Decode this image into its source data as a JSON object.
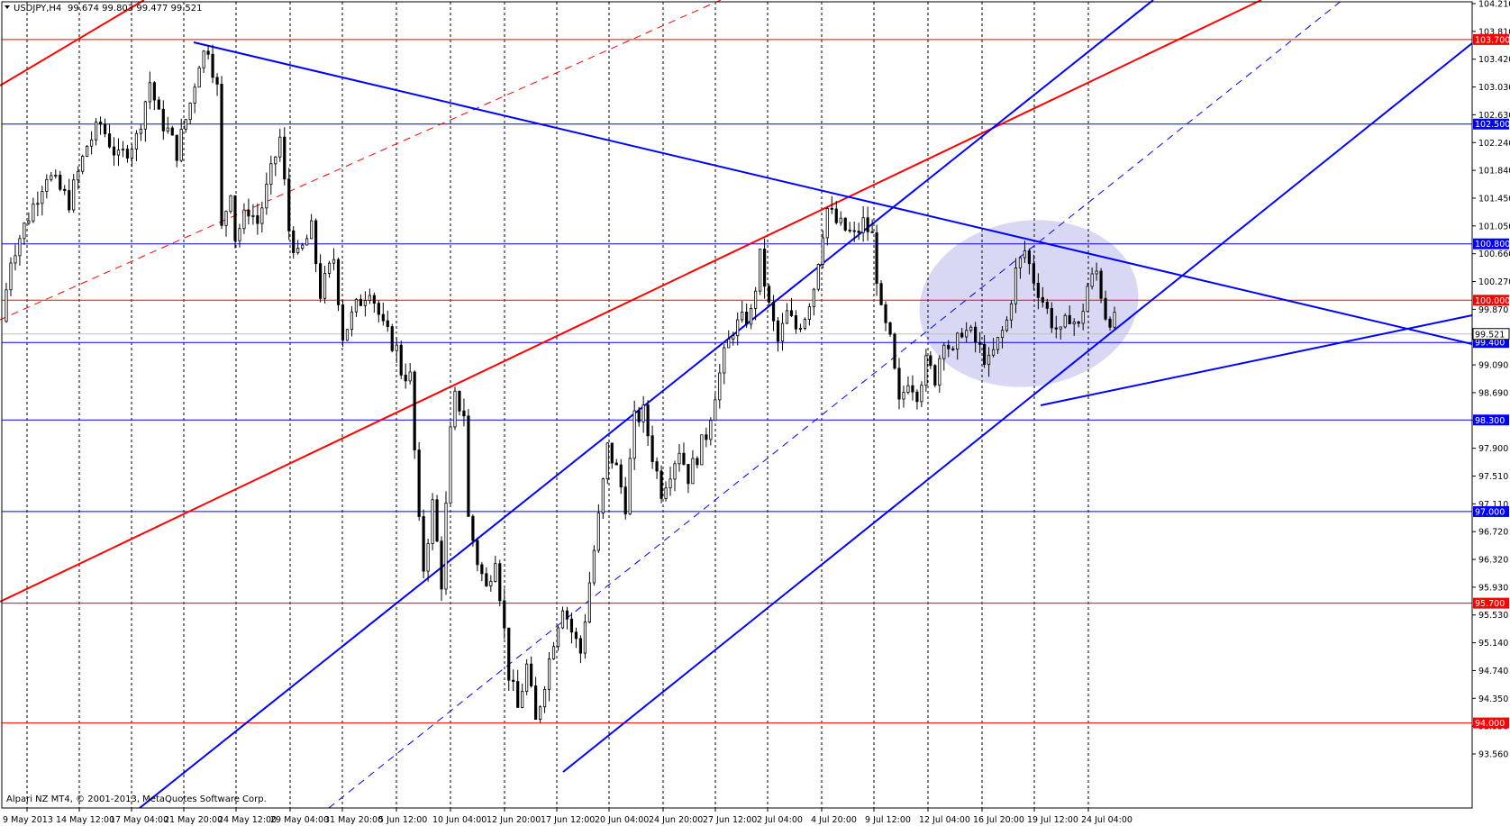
{
  "header": {
    "symbol": "USDJPY,H4",
    "ohlc": "99.674 99.803 99.477 99.521",
    "menu_icon": "triangle-down-icon"
  },
  "copyright": "Alpari NZ MT4, © 2001-2013, MetaQuotes Software Corp.",
  "colors": {
    "up_line": "#0000ff",
    "red_line": "#ff0000",
    "ellipse": "#d8d8f4",
    "candle": "#000000",
    "grid": "#000000"
  },
  "chart_data": {
    "type": "candlestick",
    "symbol": "USDJPY",
    "timeframe": "H4",
    "ylim": [
      93.56,
      104.21
    ],
    "y_ticks": [
      "104.210",
      "103.810",
      "103.420",
      "103.030",
      "102.630",
      "102.240",
      "101.840",
      "101.450",
      "101.050",
      "100.660",
      "100.270",
      "99.870",
      "99.480",
      "99.090",
      "98.690",
      "98.300",
      "97.900",
      "97.510",
      "97.110",
      "96.720",
      "96.320",
      "95.930",
      "95.530",
      "95.140",
      "94.740",
      "94.350",
      "93.950",
      "93.560"
    ],
    "x_labels": [
      "9 May 2013",
      "14 May 12:00",
      "17 May 04:00",
      "21 May 20:00",
      "24 May 12:00",
      "29 May 04:00",
      "31 May 20:00",
      "5 Jun 12:00",
      "10 Jun 04:00",
      "12 Jun 20:00",
      "17 Jun 12:00",
      "20 Jun 04:00",
      "24 Jun 20:00",
      "27 Jun 12:00",
      "2 Jul 04:00",
      "4 Jul 20:00",
      "9 Jul 12:00",
      "12 Jul 04:00",
      "16 Jul 20:00",
      "19 Jul 12:00",
      "24 Jul 04:00"
    ],
    "current_price": "99.521",
    "horizontal_levels": [
      {
        "label": "103.700",
        "value": 103.7,
        "color": "red"
      },
      {
        "label": "102.500",
        "value": 102.5,
        "color": "blue"
      },
      {
        "label": "100.800",
        "value": 100.8,
        "color": "blue"
      },
      {
        "label": "100.000",
        "value": 100.0,
        "color": "red"
      },
      {
        "label": "99.400",
        "value": 99.4,
        "color": "blue"
      },
      {
        "label": "98.300",
        "value": 98.3,
        "color": "blue"
      },
      {
        "label": "97.000",
        "value": 97.0,
        "color": "blue"
      },
      {
        "label": "95.700",
        "value": 95.7,
        "color": "red"
      },
      {
        "label": "94.000",
        "value": 94.0,
        "color": "red"
      }
    ],
    "price_path": [
      [
        0,
        99.7
      ],
      [
        2,
        100.6
      ],
      [
        6,
        101.2
      ],
      [
        10,
        101.8
      ],
      [
        15,
        101.4
      ],
      [
        19,
        102.2
      ],
      [
        22,
        102.5
      ],
      [
        26,
        102.0
      ],
      [
        30,
        102.3
      ],
      [
        33,
        103.1
      ],
      [
        35,
        102.6
      ],
      [
        37,
        102.4
      ],
      [
        39,
        102.1
      ],
      [
        42,
        102.8
      ],
      [
        44,
        103.4
      ],
      [
        46,
        103.6
      ],
      [
        48,
        103.0
      ],
      [
        49,
        101.0
      ],
      [
        51,
        101.6
      ],
      [
        52,
        100.9
      ],
      [
        55,
        101.3
      ],
      [
        57,
        101.1
      ],
      [
        60,
        101.8
      ],
      [
        62,
        102.3
      ],
      [
        64,
        101.0
      ],
      [
        66,
        100.6
      ],
      [
        69,
        101.0
      ],
      [
        71,
        100.1
      ],
      [
        74,
        100.6
      ],
      [
        76,
        99.5
      ],
      [
        79,
        99.9
      ],
      [
        82,
        100.2
      ],
      [
        85,
        99.6
      ],
      [
        88,
        99.3
      ],
      [
        89,
        99.0
      ],
      [
        91,
        98.9
      ],
      [
        93,
        96.8
      ],
      [
        94,
        96.2
      ],
      [
        96,
        97.1
      ],
      [
        98,
        96.0
      ],
      [
        100,
        98.1
      ],
      [
        101,
        98.6
      ],
      [
        103,
        98.4
      ],
      [
        104,
        96.9
      ],
      [
        106,
        96.3
      ],
      [
        108,
        95.9
      ],
      [
        110,
        96.4
      ],
      [
        112,
        95.3
      ],
      [
        113,
        94.7
      ],
      [
        115,
        94.2
      ],
      [
        117,
        94.8
      ],
      [
        119,
        94.0
      ],
      [
        121,
        94.6
      ],
      [
        123,
        95.2
      ],
      [
        125,
        95.7
      ],
      [
        127,
        95.3
      ],
      [
        129,
        95.0
      ],
      [
        131,
        96.0
      ],
      [
        133,
        96.9
      ],
      [
        135,
        97.9
      ],
      [
        137,
        97.6
      ],
      [
        139,
        97.1
      ],
      [
        141,
        98.3
      ],
      [
        143,
        98.4
      ],
      [
        145,
        97.8
      ],
      [
        147,
        97.3
      ],
      [
        149,
        97.6
      ],
      [
        151,
        97.9
      ],
      [
        153,
        97.5
      ],
      [
        155,
        97.8
      ],
      [
        157,
        98.1
      ],
      [
        159,
        98.7
      ],
      [
        161,
        99.2
      ],
      [
        163,
        99.6
      ],
      [
        165,
        99.7
      ],
      [
        167,
        99.8
      ],
      [
        169,
        100.6
      ],
      [
        171,
        99.9
      ],
      [
        173,
        99.4
      ],
      [
        175,
        99.8
      ],
      [
        177,
        99.6
      ],
      [
        179,
        99.8
      ],
      [
        181,
        100.2
      ],
      [
        183,
        101.0
      ],
      [
        184,
        101.3
      ],
      [
        186,
        101.1
      ],
      [
        188,
        101.0
      ],
      [
        190,
        100.9
      ],
      [
        192,
        101.1
      ],
      [
        194,
        100.9
      ],
      [
        196,
        99.8
      ],
      [
        198,
        99.4
      ],
      [
        200,
        98.5
      ],
      [
        202,
        98.9
      ],
      [
        204,
        98.7
      ],
      [
        206,
        99.1
      ],
      [
        208,
        98.9
      ],
      [
        210,
        99.5
      ],
      [
        212,
        99.2
      ],
      [
        214,
        99.6
      ],
      [
        216,
        99.5
      ],
      [
        218,
        99.3
      ],
      [
        220,
        99.1
      ],
      [
        222,
        99.4
      ],
      [
        224,
        99.7
      ],
      [
        226,
        100.4
      ],
      [
        228,
        100.7
      ],
      [
        230,
        100.3
      ],
      [
        232,
        100.0
      ],
      [
        234,
        99.7
      ],
      [
        236,
        99.5
      ],
      [
        238,
        99.8
      ],
      [
        240,
        99.6
      ],
      [
        242,
        100.2
      ],
      [
        244,
        100.4
      ],
      [
        246,
        99.8
      ],
      [
        248,
        99.7
      ]
    ]
  }
}
